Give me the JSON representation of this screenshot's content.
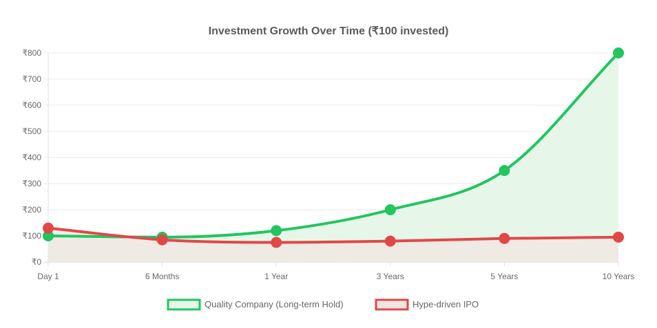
{
  "chart_data": {
    "type": "line",
    "title": "Investment Growth Over Time (₹100 invested)",
    "categories": [
      "Day 1",
      "6 Months",
      "1 Year",
      "3 Years",
      "5 Years",
      "10 Years"
    ],
    "y_tick_labels": [
      "₹0",
      "₹100",
      "₹200",
      "₹300",
      "₹400",
      "₹500",
      "₹600",
      "₹700",
      "₹800"
    ],
    "ylim": [
      0,
      800
    ],
    "grid": true,
    "legend_position": "bottom",
    "series": [
      {
        "name": "Quality Company (Long-term Hold)",
        "values": [
          100,
          95,
          120,
          200,
          350,
          800
        ],
        "color": "#22c55e",
        "fill": "#e6f7ea",
        "filled": true
      },
      {
        "name": "Hype-driven IPO",
        "values": [
          130,
          85,
          75,
          80,
          90,
          95
        ],
        "color": "#e04848",
        "fill": "#f1e5e2",
        "filled": true
      }
    ]
  }
}
